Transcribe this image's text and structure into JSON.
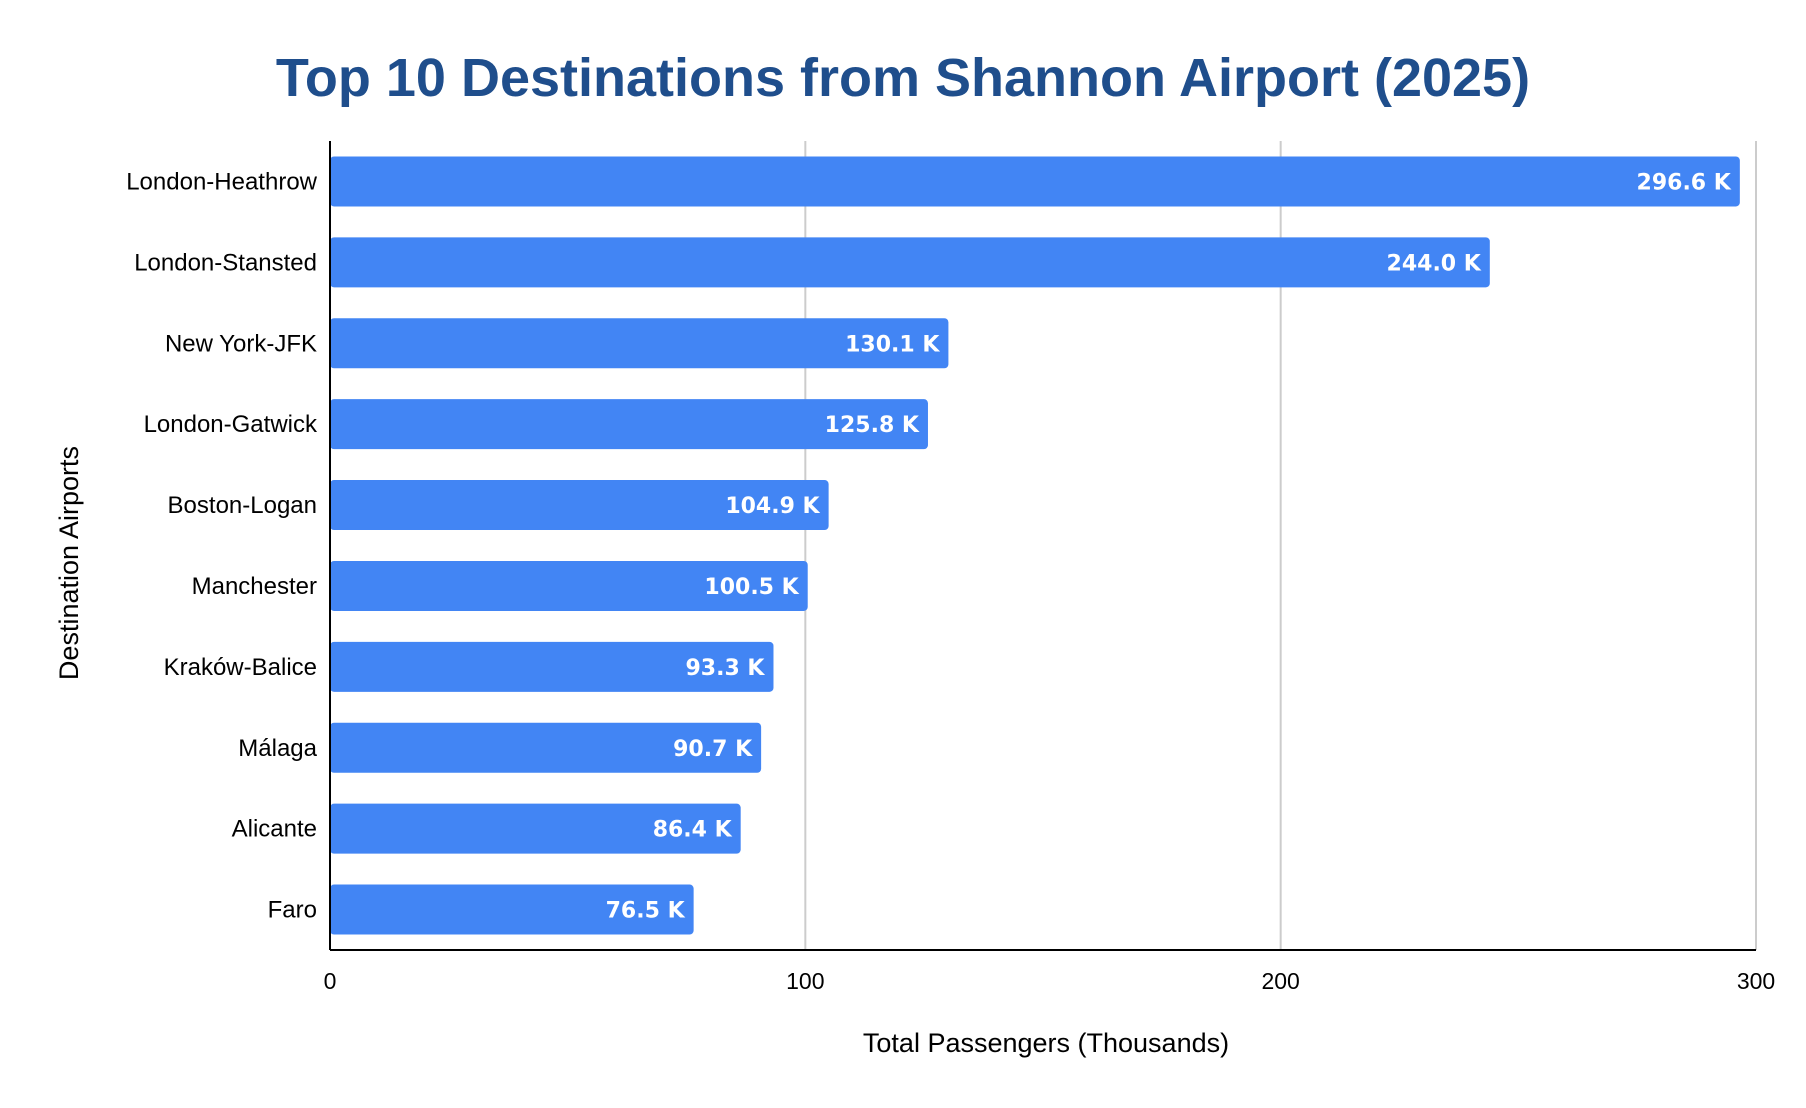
{
  "chart_data": {
    "type": "bar",
    "orientation": "horizontal",
    "title": "Top 10 Destinations from Shannon Airport (2025)",
    "xlabel": "Total Passengers (Thousands)",
    "ylabel": "Destination Airports",
    "xlim": [
      0,
      300
    ],
    "xticks": [
      "0",
      "100",
      "200",
      "300"
    ],
    "categories": [
      "London-Heathrow",
      "London-Stansted",
      "New York-JFK",
      "London-Gatwick",
      "Boston-Logan",
      "Manchester",
      "Kraków-Balice",
      "Málaga",
      "Alicante",
      "Faro"
    ],
    "values": [
      296.6,
      244.0,
      130.1,
      125.8,
      104.9,
      100.5,
      93.3,
      90.7,
      86.4,
      76.5
    ],
    "data_labels": [
      "296.6 K",
      "244.0 K",
      "130.1 K",
      "125.8 K",
      "104.9 K",
      "100.5 K",
      "93.3 K",
      "90.7 K",
      "86.4 K",
      "76.5 K"
    ],
    "grid": true,
    "legend": "none",
    "colors": {
      "bar": "#4285F4",
      "title": "#1F4E8C",
      "gridline": "#CCCCCC",
      "axis": "#000000"
    }
  }
}
